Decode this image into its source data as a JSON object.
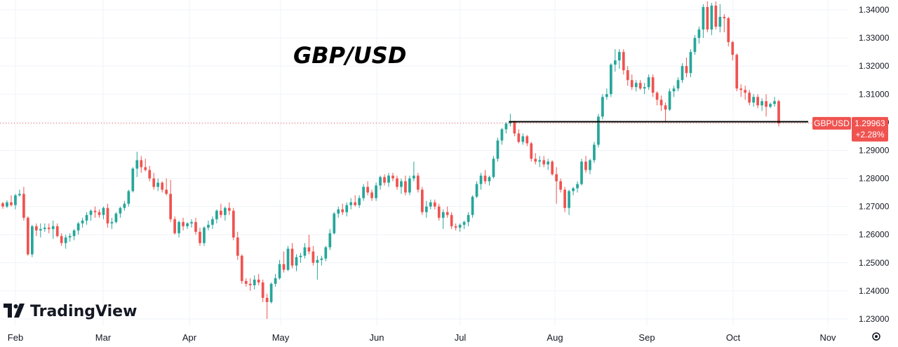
{
  "chart_data": {
    "type": "candlestick",
    "title": "GBP/USD",
    "symbol": "GBPUSD",
    "last_price": "1.29963",
    "change_pct": "+2.28%",
    "support_level": 1.3002,
    "up_color": "#26a69a",
    "down_color": "#ef5350",
    "ylim": [
      1.2275,
      1.3435
    ],
    "y_ticks": [
      "1.34000",
      "1.33000",
      "1.32000",
      "1.31000",
      "1.30000",
      "1.29000",
      "1.28000",
      "1.27000",
      "1.26000",
      "1.25000",
      "1.24000",
      "1.23000"
    ],
    "x_ticks": [
      "Feb",
      "Mar",
      "Apr",
      "May",
      "Jun",
      "Jul",
      "Aug",
      "Sep",
      "Oct",
      "Nov"
    ],
    "ohlc": [
      [
        1.2712,
        1.2716,
        1.2692,
        1.27
      ],
      [
        1.27,
        1.2722,
        1.2695,
        1.2715
      ],
      [
        1.2715,
        1.274,
        1.27,
        1.2705
      ],
      [
        1.2705,
        1.2745,
        1.269,
        1.274
      ],
      [
        1.274,
        1.276,
        1.2735,
        1.2745
      ],
      [
        1.2745,
        1.277,
        1.265,
        1.266
      ],
      [
        1.266,
        1.2665,
        1.2525,
        1.253
      ],
      [
        1.253,
        1.2635,
        1.252,
        1.263
      ],
      [
        1.263,
        1.264,
        1.2595,
        1.2615
      ],
      [
        1.2615,
        1.264,
        1.259,
        1.262
      ],
      [
        1.262,
        1.264,
        1.261,
        1.2625
      ],
      [
        1.2625,
        1.264,
        1.2605,
        1.262
      ],
      [
        1.262,
        1.265,
        1.2585,
        1.263
      ],
      [
        1.263,
        1.264,
        1.259,
        1.2595
      ],
      [
        1.2595,
        1.2605,
        1.256,
        1.257
      ],
      [
        1.257,
        1.26,
        1.255,
        1.259
      ],
      [
        1.259,
        1.2605,
        1.2575,
        1.2595
      ],
      [
        1.2595,
        1.262,
        1.258,
        1.2615
      ],
      [
        1.2615,
        1.2645,
        1.26,
        1.264
      ],
      [
        1.264,
        1.266,
        1.2625,
        1.265
      ],
      [
        1.265,
        1.268,
        1.2635,
        1.267
      ],
      [
        1.267,
        1.269,
        1.265,
        1.2685
      ],
      [
        1.2685,
        1.27,
        1.266,
        1.268
      ],
      [
        1.268,
        1.269,
        1.266,
        1.267
      ],
      [
        1.267,
        1.27,
        1.2655,
        1.2695
      ],
      [
        1.2695,
        1.271,
        1.2625,
        1.264
      ],
      [
        1.264,
        1.266,
        1.262,
        1.2645
      ],
      [
        1.2645,
        1.268,
        1.264,
        1.2675
      ],
      [
        1.2675,
        1.27,
        1.266,
        1.2695
      ],
      [
        1.2695,
        1.272,
        1.2685,
        1.271
      ],
      [
        1.271,
        1.276,
        1.27,
        1.2755
      ],
      [
        1.2755,
        1.284,
        1.275,
        1.2835
      ],
      [
        1.2835,
        1.2895,
        1.2805,
        1.2865
      ],
      [
        1.2865,
        1.288,
        1.282,
        1.284
      ],
      [
        1.284,
        1.287,
        1.2825,
        1.283
      ],
      [
        1.283,
        1.2845,
        1.279,
        1.28
      ],
      [
        1.28,
        1.282,
        1.276,
        1.277
      ],
      [
        1.277,
        1.28,
        1.2755,
        1.2785
      ],
      [
        1.2785,
        1.279,
        1.275,
        1.276
      ],
      [
        1.276,
        1.28,
        1.274,
        1.2745
      ],
      [
        1.2745,
        1.2795,
        1.2645,
        1.2655
      ],
      [
        1.2655,
        1.2665,
        1.26,
        1.2605
      ],
      [
        1.2605,
        1.265,
        1.259,
        1.2645
      ],
      [
        1.2645,
        1.266,
        1.2615,
        1.263
      ],
      [
        1.263,
        1.2645,
        1.262,
        1.264
      ],
      [
        1.264,
        1.2655,
        1.2625,
        1.2645
      ],
      [
        1.2645,
        1.266,
        1.26,
        1.261
      ],
      [
        1.261,
        1.2625,
        1.256,
        1.257
      ],
      [
        1.257,
        1.263,
        1.256,
        1.2625
      ],
      [
        1.2625,
        1.265,
        1.2615,
        1.2635
      ],
      [
        1.2635,
        1.2665,
        1.262,
        1.2655
      ],
      [
        1.2655,
        1.269,
        1.264,
        1.2685
      ],
      [
        1.2685,
        1.271,
        1.266,
        1.267
      ],
      [
        1.267,
        1.27,
        1.265,
        1.2695
      ],
      [
        1.2695,
        1.2715,
        1.267,
        1.2685
      ],
      [
        1.2685,
        1.2695,
        1.258,
        1.259
      ],
      [
        1.259,
        1.261,
        1.251,
        1.2525
      ],
      [
        1.2525,
        1.253,
        1.2425,
        1.2435
      ],
      [
        1.2435,
        1.2445,
        1.2415,
        1.2425
      ],
      [
        1.2425,
        1.2445,
        1.24,
        1.242
      ],
      [
        1.242,
        1.2455,
        1.2405,
        1.244
      ],
      [
        1.244,
        1.246,
        1.242,
        1.243
      ],
      [
        1.243,
        1.244,
        1.236,
        1.2375
      ],
      [
        1.2375,
        1.239,
        1.23,
        1.236
      ],
      [
        1.236,
        1.243,
        1.2355,
        1.2425
      ],
      [
        1.2425,
        1.246,
        1.2415,
        1.2445
      ],
      [
        1.2445,
        1.251,
        1.244,
        1.2495
      ],
      [
        1.2495,
        1.254,
        1.2465,
        1.2475
      ],
      [
        1.2475,
        1.256,
        1.247,
        1.255
      ],
      [
        1.255,
        1.257,
        1.248,
        1.249
      ],
      [
        1.249,
        1.253,
        1.247,
        1.252
      ],
      [
        1.252,
        1.2535,
        1.25,
        1.2525
      ],
      [
        1.2525,
        1.257,
        1.2515,
        1.2555
      ],
      [
        1.2555,
        1.26,
        1.253,
        1.254
      ],
      [
        1.254,
        1.256,
        1.249,
        1.25
      ],
      [
        1.25,
        1.2525,
        1.244,
        1.251
      ],
      [
        1.251,
        1.2525,
        1.249,
        1.2515
      ],
      [
        1.2515,
        1.256,
        1.2505,
        1.2555
      ],
      [
        1.2555,
        1.262,
        1.2545,
        1.2605
      ],
      [
        1.2605,
        1.268,
        1.26,
        1.2675
      ],
      [
        1.2675,
        1.27,
        1.266,
        1.269
      ],
      [
        1.269,
        1.271,
        1.267,
        1.268
      ],
      [
        1.268,
        1.2715,
        1.2665,
        1.2705
      ],
      [
        1.2705,
        1.273,
        1.269,
        1.2715
      ],
      [
        1.2715,
        1.274,
        1.27,
        1.2705
      ],
      [
        1.2705,
        1.274,
        1.2695,
        1.273
      ],
      [
        1.273,
        1.278,
        1.272,
        1.277
      ],
      [
        1.277,
        1.279,
        1.274,
        1.275
      ],
      [
        1.275,
        1.276,
        1.272,
        1.273
      ],
      [
        1.273,
        1.2785,
        1.272,
        1.2775
      ],
      [
        1.2775,
        1.281,
        1.276,
        1.2805
      ],
      [
        1.2805,
        1.2815,
        1.2775,
        1.2785
      ],
      [
        1.2785,
        1.282,
        1.277,
        1.281
      ],
      [
        1.281,
        1.282,
        1.279,
        1.28
      ],
      [
        1.28,
        1.281,
        1.276,
        1.277
      ],
      [
        1.277,
        1.28,
        1.2745,
        1.279
      ],
      [
        1.279,
        1.281,
        1.274,
        1.275
      ],
      [
        1.275,
        1.281,
        1.274,
        1.28
      ],
      [
        1.28,
        1.286,
        1.279,
        1.281
      ],
      [
        1.281,
        1.282,
        1.275,
        1.276
      ],
      [
        1.276,
        1.277,
        1.267,
        1.268
      ],
      [
        1.268,
        1.272,
        1.266,
        1.27
      ],
      [
        1.27,
        1.2725,
        1.269,
        1.2715
      ],
      [
        1.2715,
        1.2725,
        1.269,
        1.27
      ],
      [
        1.27,
        1.271,
        1.265,
        1.266
      ],
      [
        1.266,
        1.269,
        1.262,
        1.268
      ],
      [
        1.268,
        1.27,
        1.266,
        1.267
      ],
      [
        1.267,
        1.268,
        1.262,
        1.263
      ],
      [
        1.263,
        1.264,
        1.2615,
        1.2625
      ],
      [
        1.2625,
        1.264,
        1.261,
        1.2635
      ],
      [
        1.2635,
        1.265,
        1.262,
        1.2645
      ],
      [
        1.2645,
        1.268,
        1.263,
        1.267
      ],
      [
        1.267,
        1.274,
        1.266,
        1.2735
      ],
      [
        1.2735,
        1.279,
        1.273,
        1.278
      ],
      [
        1.278,
        1.282,
        1.276,
        1.281
      ],
      [
        1.281,
        1.283,
        1.278,
        1.279
      ],
      [
        1.279,
        1.281,
        1.2775,
        1.2805
      ],
      [
        1.2805,
        1.288,
        1.28,
        1.287
      ],
      [
        1.287,
        1.2945,
        1.286,
        1.2935
      ],
      [
        1.2935,
        1.298,
        1.292,
        1.2975
      ],
      [
        1.2975,
        1.3,
        1.296,
        1.2995
      ],
      [
        1.2995,
        1.303,
        1.2985,
        1.3
      ],
      [
        1.3,
        1.3005,
        1.295,
        1.296
      ],
      [
        1.296,
        1.2975,
        1.2925,
        1.293
      ],
      [
        1.293,
        1.296,
        1.292,
        1.295
      ],
      [
        1.295,
        1.2955,
        1.2915,
        1.2925
      ],
      [
        1.2925,
        1.293,
        1.286,
        1.287
      ],
      [
        1.287,
        1.289,
        1.285,
        1.286
      ],
      [
        1.286,
        1.288,
        1.284,
        1.2865
      ],
      [
        1.2865,
        1.288,
        1.284,
        1.285
      ],
      [
        1.285,
        1.287,
        1.283,
        1.286
      ],
      [
        1.286,
        1.2865,
        1.281,
        1.2815
      ],
      [
        1.2815,
        1.284,
        1.271,
        1.279
      ],
      [
        1.279,
        1.28,
        1.275,
        1.276
      ],
      [
        1.276,
        1.277,
        1.268,
        1.2695
      ],
      [
        1.2695,
        1.276,
        1.267,
        1.2755
      ],
      [
        1.2755,
        1.277,
        1.274,
        1.2765
      ],
      [
        1.2765,
        1.279,
        1.275,
        1.278
      ],
      [
        1.278,
        1.287,
        1.2775,
        1.286
      ],
      [
        1.286,
        1.288,
        1.282,
        1.283
      ],
      [
        1.283,
        1.287,
        1.2815,
        1.2865
      ],
      [
        1.2865,
        1.293,
        1.2855,
        1.292
      ],
      [
        1.292,
        1.303,
        1.291,
        1.302
      ],
      [
        1.302,
        1.31,
        1.301,
        1.309
      ],
      [
        1.309,
        1.312,
        1.308,
        1.31
      ],
      [
        1.31,
        1.321,
        1.309,
        1.3205
      ],
      [
        1.3205,
        1.326,
        1.318,
        1.322
      ],
      [
        1.322,
        1.326,
        1.319,
        1.325
      ],
      [
        1.325,
        1.326,
        1.317,
        1.3185
      ],
      [
        1.3185,
        1.32,
        1.313,
        1.315
      ],
      [
        1.315,
        1.317,
        1.3115,
        1.3125
      ],
      [
        1.3125,
        1.315,
        1.311,
        1.314
      ],
      [
        1.314,
        1.315,
        1.3115,
        1.312
      ],
      [
        1.312,
        1.314,
        1.31,
        1.3125
      ],
      [
        1.3125,
        1.317,
        1.3115,
        1.316
      ],
      [
        1.316,
        1.317,
        1.309,
        1.3105
      ],
      [
        1.3105,
        1.311,
        1.306,
        1.308
      ],
      [
        1.308,
        1.3095,
        1.304,
        1.306
      ],
      [
        1.306,
        1.307,
        1.3,
        1.3045
      ],
      [
        1.3045,
        1.312,
        1.304,
        1.311
      ],
      [
        1.311,
        1.313,
        1.309,
        1.312
      ],
      [
        1.312,
        1.316,
        1.311,
        1.315
      ],
      [
        1.315,
        1.321,
        1.314,
        1.32
      ],
      [
        1.32,
        1.323,
        1.316,
        1.3175
      ],
      [
        1.3175,
        1.326,
        1.316,
        1.325
      ],
      [
        1.325,
        1.331,
        1.324,
        1.33
      ],
      [
        1.33,
        1.334,
        1.328,
        1.333
      ],
      [
        1.333,
        1.342,
        1.33,
        1.341
      ],
      [
        1.341,
        1.343,
        1.332,
        1.333
      ],
      [
        1.333,
        1.3425,
        1.331,
        1.3415
      ],
      [
        1.3415,
        1.343,
        1.333,
        1.334
      ],
      [
        1.334,
        1.342,
        1.332,
        1.3375
      ],
      [
        1.3375,
        1.3385,
        1.332,
        1.337
      ],
      [
        1.337,
        1.3375,
        1.327,
        1.3285
      ],
      [
        1.3285,
        1.329,
        1.322,
        1.324
      ],
      [
        1.324,
        1.3245,
        1.311,
        1.312
      ],
      [
        1.312,
        1.3135,
        1.309,
        1.3115
      ],
      [
        1.3115,
        1.313,
        1.308,
        1.3105
      ],
      [
        1.3105,
        1.3115,
        1.306,
        1.307
      ],
      [
        1.307,
        1.31,
        1.3055,
        1.309
      ],
      [
        1.309,
        1.31,
        1.305,
        1.306
      ],
      [
        1.306,
        1.3085,
        1.304,
        1.3075
      ],
      [
        1.3075,
        1.31,
        1.302,
        1.3055
      ],
      [
        1.3055,
        1.307,
        1.305,
        1.3065
      ],
      [
        1.3065,
        1.309,
        1.3055,
        1.3075
      ],
      [
        1.3075,
        1.308,
        1.2985,
        1.2996
      ]
    ],
    "logo_text": "TradingView"
  }
}
